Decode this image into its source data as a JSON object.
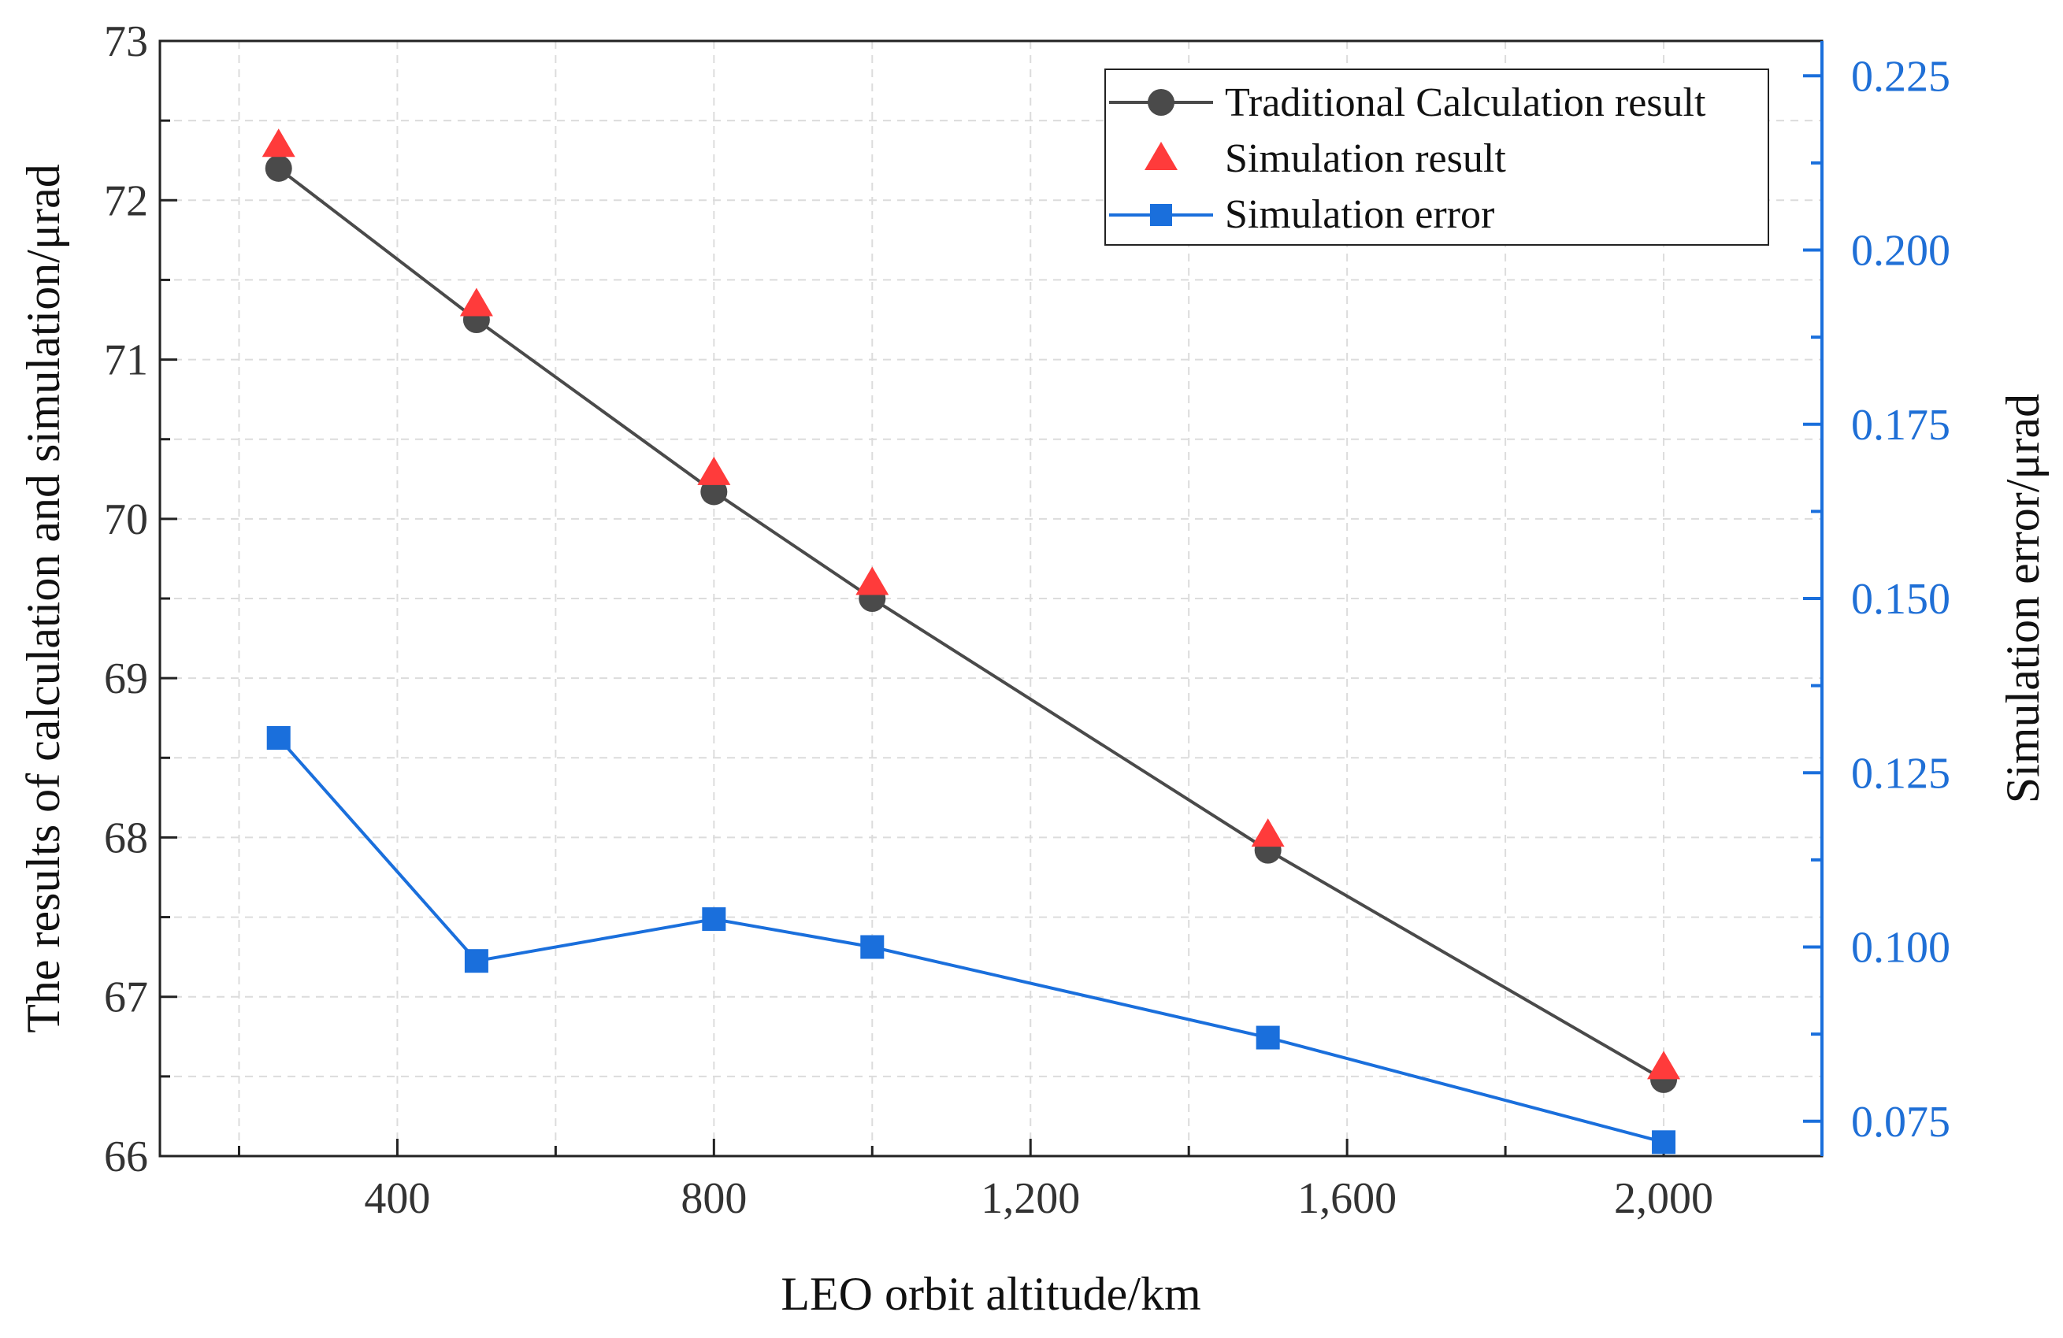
{
  "chart_data": {
    "type": "line",
    "xlabel": "LEO orbit altitude/km",
    "ylabel_left": "The results of calculation and simulation/μrad",
    "ylabel_right": "Simulation error/μrad",
    "xlim": [
      100,
      2200
    ],
    "ylim_left": [
      66,
      73
    ],
    "ylim_right": [
      0.07,
      0.23
    ],
    "x_ticks": [
      "400",
      "800",
      "1,200",
      "1,600",
      "2,000"
    ],
    "x_tick_values": [
      400,
      800,
      1200,
      1600,
      2000
    ],
    "y_left_ticks": [
      "66",
      "67",
      "68",
      "69",
      "70",
      "71",
      "72",
      "73"
    ],
    "y_left_tick_values": [
      66,
      67,
      68,
      69,
      70,
      71,
      72,
      73
    ],
    "y_right_ticks": [
      "0.075",
      "0.100",
      "0.125",
      "0.150",
      "0.175",
      "0.200",
      "0.225"
    ],
    "y_right_tick_values": [
      0.075,
      0.1,
      0.125,
      0.15,
      0.175,
      0.2,
      0.225
    ],
    "grid": true,
    "legend_position": "top-right",
    "x": [
      250,
      500,
      800,
      1000,
      1500,
      2000
    ],
    "series": [
      {
        "name": "Traditional Calculation result",
        "axis": "left",
        "marker": "circle",
        "line": true,
        "color": "#4a4a4a",
        "values": [
          72.2,
          71.25,
          70.17,
          69.5,
          67.92,
          66.48
        ]
      },
      {
        "name": "Simulation result",
        "axis": "left",
        "marker": "triangle",
        "line": false,
        "color": "#ff3b3b",
        "values": [
          72.34,
          71.34,
          70.28,
          69.59,
          68.01,
          66.55
        ]
      },
      {
        "name": "Simulation error",
        "axis": "right",
        "marker": "square",
        "line": true,
        "color": "#1a6fdc",
        "values": [
          0.13,
          0.098,
          0.104,
          0.1,
          0.087,
          0.072
        ]
      }
    ]
  }
}
